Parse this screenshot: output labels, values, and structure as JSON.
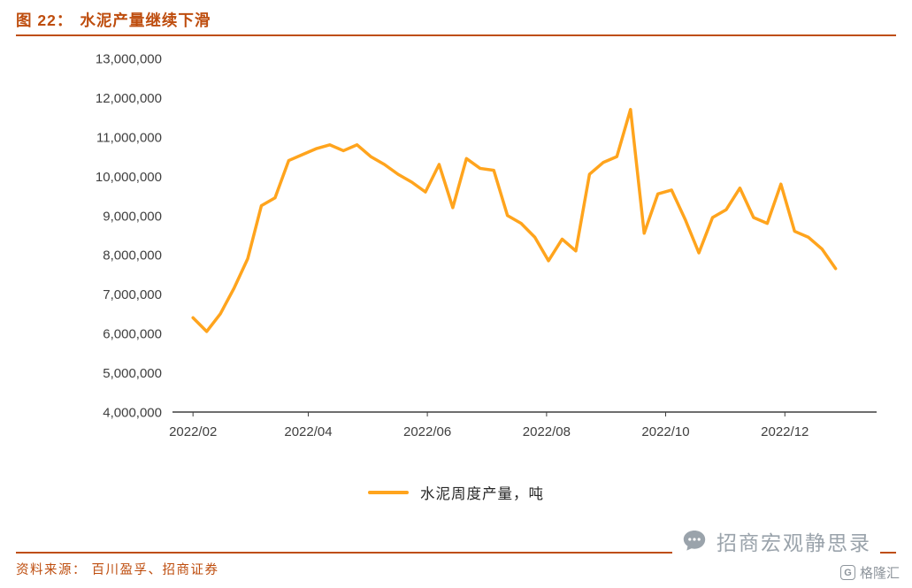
{
  "header": {
    "figure_label": "图 22：",
    "title": "水泥产量继续下滑"
  },
  "colors": {
    "accent": "#BE4D0E",
    "line": "#FFA41D",
    "axis_text": "#3F3F3F",
    "watermark_gray": "#9AA3AB"
  },
  "chart_data": {
    "type": "line",
    "title": "水泥产量继续下滑",
    "xlabel": "",
    "ylabel": "",
    "grid": false,
    "legend_position": "bottom",
    "ylim": [
      4000000,
      13000000
    ],
    "xlim": [
      -1.5,
      50
    ],
    "y_ticks": [
      4000000,
      5000000,
      6000000,
      7000000,
      8000000,
      9000000,
      10000000,
      11000000,
      12000000,
      13000000
    ],
    "x_ticks": [
      "2022/02",
      "2022/04",
      "2022/06",
      "2022/08",
      "2022/10",
      "2022/12"
    ],
    "x_tick_positions": [
      0,
      8.43,
      17.14,
      25.86,
      34.57,
      43.29
    ],
    "x_unit": "weekly index starting 2022/02",
    "series": [
      {
        "name": "水泥周度产量，吨",
        "values": [
          6400000,
          6050000,
          6500000,
          7150000,
          7900000,
          9250000,
          9450000,
          10400000,
          10550000,
          10700000,
          10800000,
          10650000,
          10800000,
          10500000,
          10300000,
          10050000,
          9850000,
          9600000,
          10300000,
          9200000,
          10450000,
          10200000,
          10150000,
          9000000,
          8800000,
          8450000,
          7850000,
          8400000,
          8100000,
          10050000,
          10350000,
          10500000,
          11700000,
          8550000,
          9550000,
          9650000,
          8900000,
          8050000,
          8950000,
          9150000,
          9700000,
          8950000,
          8800000,
          9800000,
          8600000,
          8450000,
          8150000,
          7650000
        ]
      }
    ]
  },
  "footer": {
    "source": "资料来源： 百川盈孚、招商证券"
  },
  "watermark": {
    "text": "招商宏观静思录"
  },
  "logo": {
    "text": "格隆汇"
  }
}
